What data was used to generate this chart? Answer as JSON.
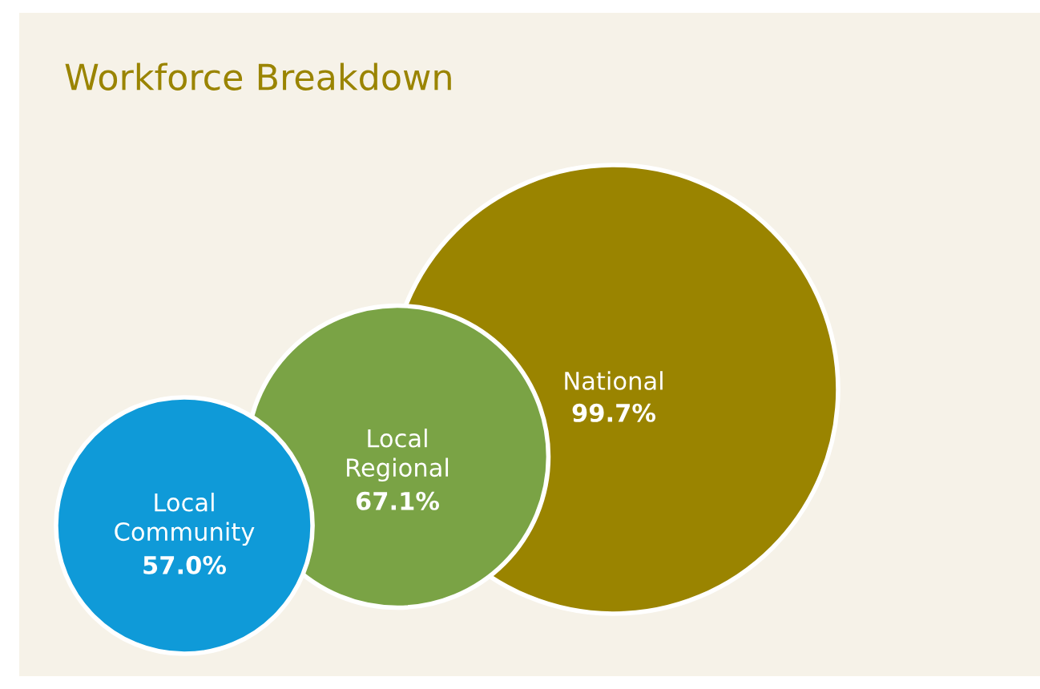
{
  "chart_data": {
    "type": "other",
    "title": "Workforce Breakdown",
    "categories": [
      "National",
      "Local Regional",
      "Local Community"
    ],
    "values": [
      99.7,
      67.1,
      57.0
    ],
    "value_labels": [
      "99.7%",
      "67.1%",
      "57.0%"
    ],
    "colors": [
      "#9a8400",
      "#7aa345",
      "#0f9ad8"
    ]
  }
}
